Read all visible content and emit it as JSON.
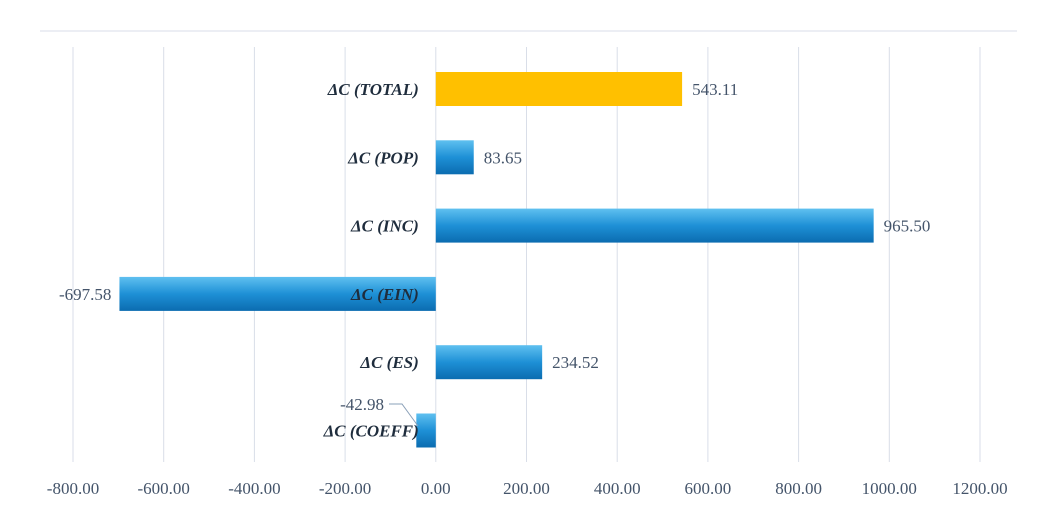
{
  "chart_data": {
    "type": "bar",
    "orientation": "horizontal",
    "categories": [
      "ΔC (TOTAL)",
      "ΔC (POP)",
      "ΔC (INC)",
      "ΔC (EIN)",
      "ΔC (ES)",
      "ΔC (COEFF)"
    ],
    "values": [
      543.11,
      83.65,
      965.5,
      -697.58,
      234.52,
      -42.98
    ],
    "value_labels": [
      "543.11",
      "83.65",
      "965.50",
      "-697.58",
      "234.52",
      "-42.98"
    ],
    "xlim": [
      -800,
      1200
    ],
    "ticks": [
      "-800.00",
      "-600.00",
      "-400.00",
      "-200.00",
      "0.00",
      "200.00",
      "400.00",
      "600.00",
      "800.00",
      "1000.00",
      "1200.00"
    ],
    "grid": true,
    "colors": {
      "highlight": "#FFC000",
      "bar": "#1E8FD5",
      "bar_dark": "#0C6FB3",
      "grid": "#D9DEE8",
      "category_text": "#1F2D3D",
      "value_text": "#44546A"
    }
  }
}
